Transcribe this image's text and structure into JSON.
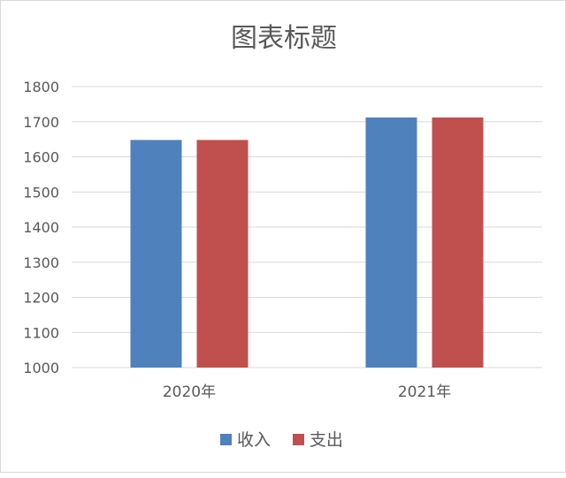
{
  "chart_data": {
    "type": "bar",
    "title": "图表标题",
    "categories": [
      "2020年",
      "2021年"
    ],
    "series": [
      {
        "name": "收入",
        "values": [
          1648,
          1712
        ],
        "color": "#4F81BD"
      },
      {
        "name": "支出",
        "values": [
          1648,
          1712
        ],
        "color": "#C0504D"
      }
    ],
    "ylim": [
      1000,
      1800
    ],
    "yticks": [
      1000,
      1100,
      1200,
      1300,
      1400,
      1500,
      1600,
      1700,
      1800
    ],
    "grid": true,
    "legend": "bottom"
  }
}
